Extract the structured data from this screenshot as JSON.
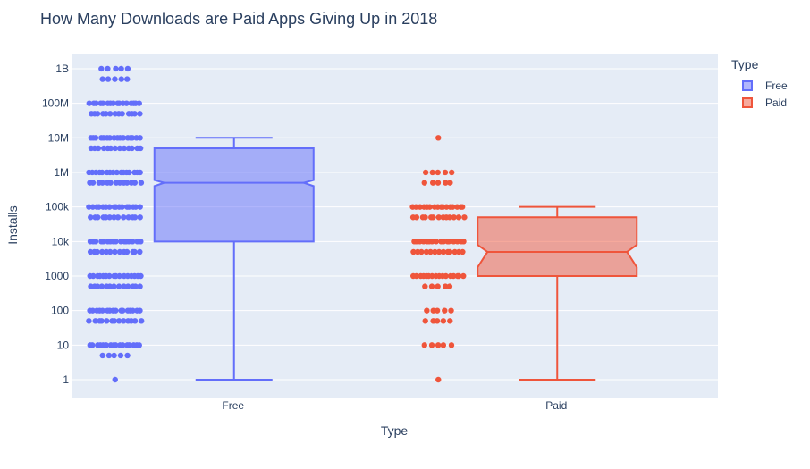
{
  "chart_data": {
    "type": "box",
    "title": "How Many Downloads are Paid Apps Giving Up in 2018",
    "xlabel": "Type",
    "ylabel": "Installs",
    "y_scale": "log",
    "y_range": [
      0.5,
      2500000000
    ],
    "y_ticks": [
      {
        "value": 1,
        "label": "1"
      },
      {
        "value": 10,
        "label": "10"
      },
      {
        "value": 100,
        "label": "100"
      },
      {
        "value": 1000,
        "label": "1000"
      },
      {
        "value": 10000,
        "label": "10k"
      },
      {
        "value": 100000,
        "label": "100k"
      },
      {
        "value": 1000000,
        "label": "1M"
      },
      {
        "value": 10000000,
        "label": "10M"
      },
      {
        "value": 100000000,
        "label": "100M"
      },
      {
        "value": 1000000000,
        "label": "1B"
      }
    ],
    "categories": [
      "Free",
      "Paid"
    ],
    "grid": true,
    "notched": true,
    "boxpoints": "all",
    "legend_title": "Type",
    "legend_position": "top-right",
    "series": [
      {
        "name": "Free",
        "color": "#636efa",
        "fill": "rgba(99,110,250,0.5)",
        "min": 1,
        "q1": 10000,
        "median": 500000,
        "q3": 5000000,
        "max": 10000000,
        "notch_low": 400000,
        "notch_high": 600000,
        "points": [
          1,
          5,
          10,
          50,
          100,
          500,
          1000,
          5000,
          10000,
          50000,
          100000,
          500000,
          1000000,
          5000000,
          10000000,
          50000000,
          100000000,
          500000000,
          1000000000
        ]
      },
      {
        "name": "Paid",
        "color": "#ef553b",
        "fill": "rgba(239,85,59,0.5)",
        "min": 1,
        "q1": 1000,
        "median": 5000,
        "q3": 50000,
        "max": 100000,
        "notch_low": 1800,
        "notch_high": 8000,
        "points": [
          1,
          10,
          50,
          100,
          500,
          1000,
          5000,
          10000,
          50000,
          100000,
          500000,
          1000000,
          10000000
        ]
      }
    ]
  }
}
